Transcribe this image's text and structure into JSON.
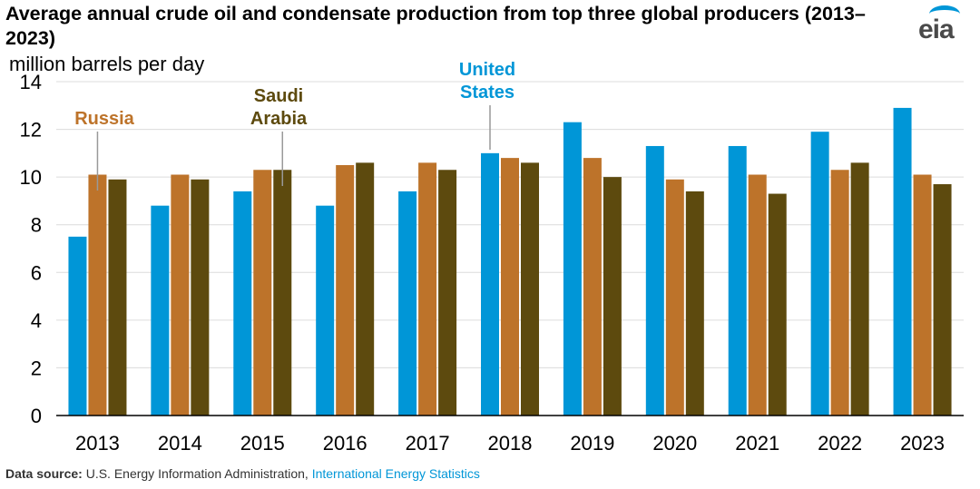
{
  "header": {
    "title": "Average annual crude oil and condensate production from top three global producers (2013–2023)",
    "units": "million barrels per day",
    "logo_text": "eia"
  },
  "source": {
    "label": "Data source:",
    "text": "U.S. Energy Information Administration,",
    "link": "International Energy Statistics"
  },
  "chart_data": {
    "type": "bar",
    "title": "Average annual crude oil and condensate production from top three global producers (2013–2023)",
    "ylabel": "million barrels per day",
    "xlabel": "",
    "ylim": [
      0,
      14
    ],
    "yticks": [
      0,
      2,
      4,
      6,
      8,
      10,
      12,
      14
    ],
    "grid": true,
    "legend": "inline annotations",
    "categories": [
      "2013",
      "2014",
      "2015",
      "2016",
      "2017",
      "2018",
      "2019",
      "2020",
      "2021",
      "2022",
      "2023"
    ],
    "series": [
      {
        "name": "United States",
        "label_lines": [
          "United",
          "States"
        ],
        "color": "#0096d7",
        "values": [
          7.5,
          8.8,
          9.4,
          8.8,
          9.4,
          11.0,
          12.3,
          11.3,
          11.3,
          11.9,
          12.9
        ]
      },
      {
        "name": "Russia",
        "label_lines": [
          "Russia"
        ],
        "color": "#bd732a",
        "values": [
          10.1,
          10.1,
          10.3,
          10.5,
          10.6,
          10.8,
          10.8,
          9.9,
          10.1,
          10.3,
          10.1
        ]
      },
      {
        "name": "Saudi Arabia",
        "label_lines": [
          "Saudi",
          "Arabia"
        ],
        "color": "#5d4a0e",
        "values": [
          9.9,
          9.9,
          10.3,
          10.6,
          10.3,
          10.6,
          10.0,
          9.4,
          9.3,
          10.6,
          9.7
        ]
      }
    ]
  }
}
